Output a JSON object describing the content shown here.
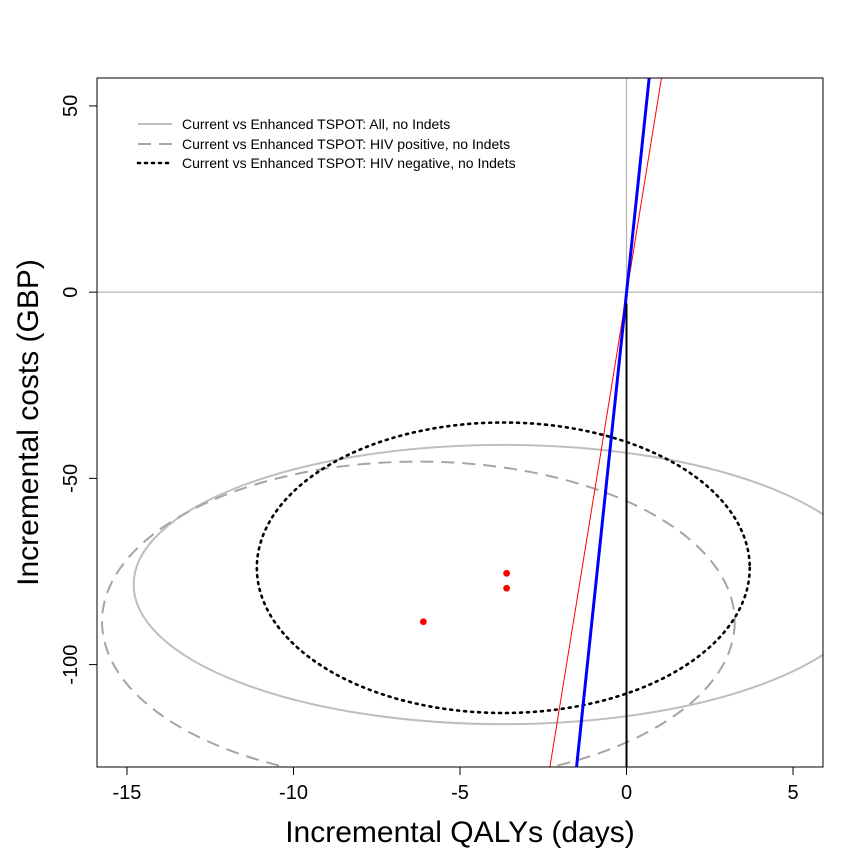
{
  "chart_data": {
    "type": "scatter",
    "title": "",
    "xlabel": "Incremental QALYs (days)",
    "ylabel": "Incremental costs (GBP)",
    "xlim": [
      -15.9,
      5.9
    ],
    "ylim": [
      -127.5,
      57.5
    ],
    "xticks": [
      -15,
      -10,
      -5,
      0,
      5
    ],
    "yticks": [
      -100,
      -50,
      0,
      50
    ],
    "xtick_labels": [
      "-15",
      "-10",
      "-5",
      "0",
      "5"
    ],
    "ytick_labels": [
      "-100",
      "-50",
      "0",
      "50"
    ],
    "legend_position": "top-left",
    "reference_lines": {
      "vertical_x": 0,
      "horizontal_y": 0,
      "color": "#b4b4b4"
    },
    "legend": [
      {
        "label": "Current vs Enhanced TSPOT: All, no Indets",
        "color": "#bebebe",
        "style": "solid"
      },
      {
        "label": "Current vs Enhanced TSPOT: HIV positive, no Indets",
        "color": "#a5a5a5",
        "style": "dashed"
      },
      {
        "label": "Current vs Enhanced TSPOT: HIV negative, no Indets",
        "color": "#000000",
        "style": "dotted"
      }
    ],
    "points": [
      {
        "x": -3.6,
        "y": -75.5,
        "color": "#ff0000"
      },
      {
        "x": -3.6,
        "y": -79.5,
        "color": "#ff0000"
      },
      {
        "x": -6.1,
        "y": -88.5,
        "color": "#ff0000"
      }
    ],
    "ellipses": [
      {
        "series": "All, no Indets",
        "cx": -3.7,
        "cy": -78.5,
        "rx": 11.1,
        "ry": 37.5,
        "color": "#bebebe",
        "style": "solid"
      },
      {
        "series": "HIV positive, no Indets",
        "cx": -6.25,
        "cy": -88.5,
        "rx": 9.5,
        "ry": 43.0,
        "color": "#a5a5a5",
        "style": "dashed"
      },
      {
        "series": "HIV negative, no Indets",
        "cx": -3.7,
        "cy": -74.0,
        "rx": 7.4,
        "ry": 39.0,
        "color": "#000000",
        "style": "dotted"
      }
    ],
    "lines": [
      {
        "name": "red threshold",
        "color": "#ff0000",
        "width": 1,
        "x1": -2.3,
        "y1": -127.5,
        "x2": 1.05,
        "y2": 57.5
      },
      {
        "name": "blue threshold",
        "color": "#0000ff",
        "width": 3,
        "x1": -1.5,
        "y1": -127.5,
        "x2": 0.68,
        "y2": 57.5
      },
      {
        "name": "black vertical",
        "color": "#000000",
        "width": 2,
        "x1": 0,
        "y1": -127.5,
        "x2": 0,
        "y2": -3
      }
    ]
  }
}
